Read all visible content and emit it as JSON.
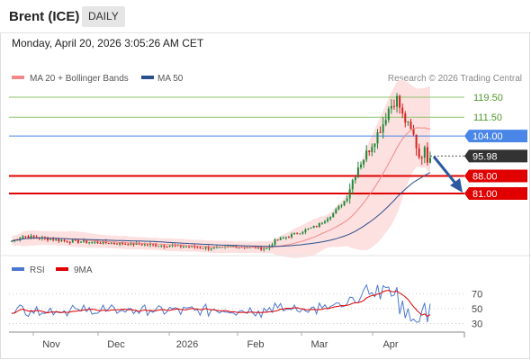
{
  "header": {
    "title": "Brent (ICE)",
    "period": "DAILY"
  },
  "datetime": "Monday, April 20, 2026 3:05:26 AM CET",
  "legend": {
    "ma20_label": "MA 20 + Bollinger Bands",
    "ma50_label": "MA 50",
    "credit": "Research © 2026 Trading Central",
    "rsi_label": "RSI",
    "rsi_ma_label": "9MA"
  },
  "colors": {
    "ma20": "#f08a8a",
    "ma50": "#2b4f8c",
    "bands_fill": "#fde0e0",
    "resistance": "#8cc56a",
    "pivot": "#4a86e8",
    "support": "#e00000",
    "rsi": "#4a78d0",
    "rsi_ma": "#e00000",
    "candle_up": "#1f8a3a",
    "candle_down": "#d62020",
    "arrow": "#2b5aa0"
  },
  "chart_data": [
    {
      "type": "candlestick",
      "x_labels": [
        "Nov",
        "Dec",
        "2026",
        "Feb",
        "Mar",
        "Apr"
      ],
      "last_price": 95.98,
      "levels": [
        {
          "value": 119.5,
          "label": "119.50",
          "kind": "resistance"
        },
        {
          "value": 111.5,
          "label": "111.50",
          "kind": "resistance"
        },
        {
          "value": 104.0,
          "label": "104.00",
          "kind": "pivot"
        },
        {
          "value": 88.0,
          "label": "88.00",
          "kind": "support"
        },
        {
          "value": 81.0,
          "label": "81.00",
          "kind": "support"
        }
      ],
      "series": [
        {
          "name": "MA 20 + Bollinger Bands"
        },
        {
          "name": "MA 50"
        }
      ]
    },
    {
      "type": "line",
      "y_ticks": [
        70,
        50,
        30
      ],
      "ylim": [
        10,
        90
      ],
      "series": [
        {
          "name": "RSI"
        },
        {
          "name": "9MA"
        }
      ]
    }
  ]
}
